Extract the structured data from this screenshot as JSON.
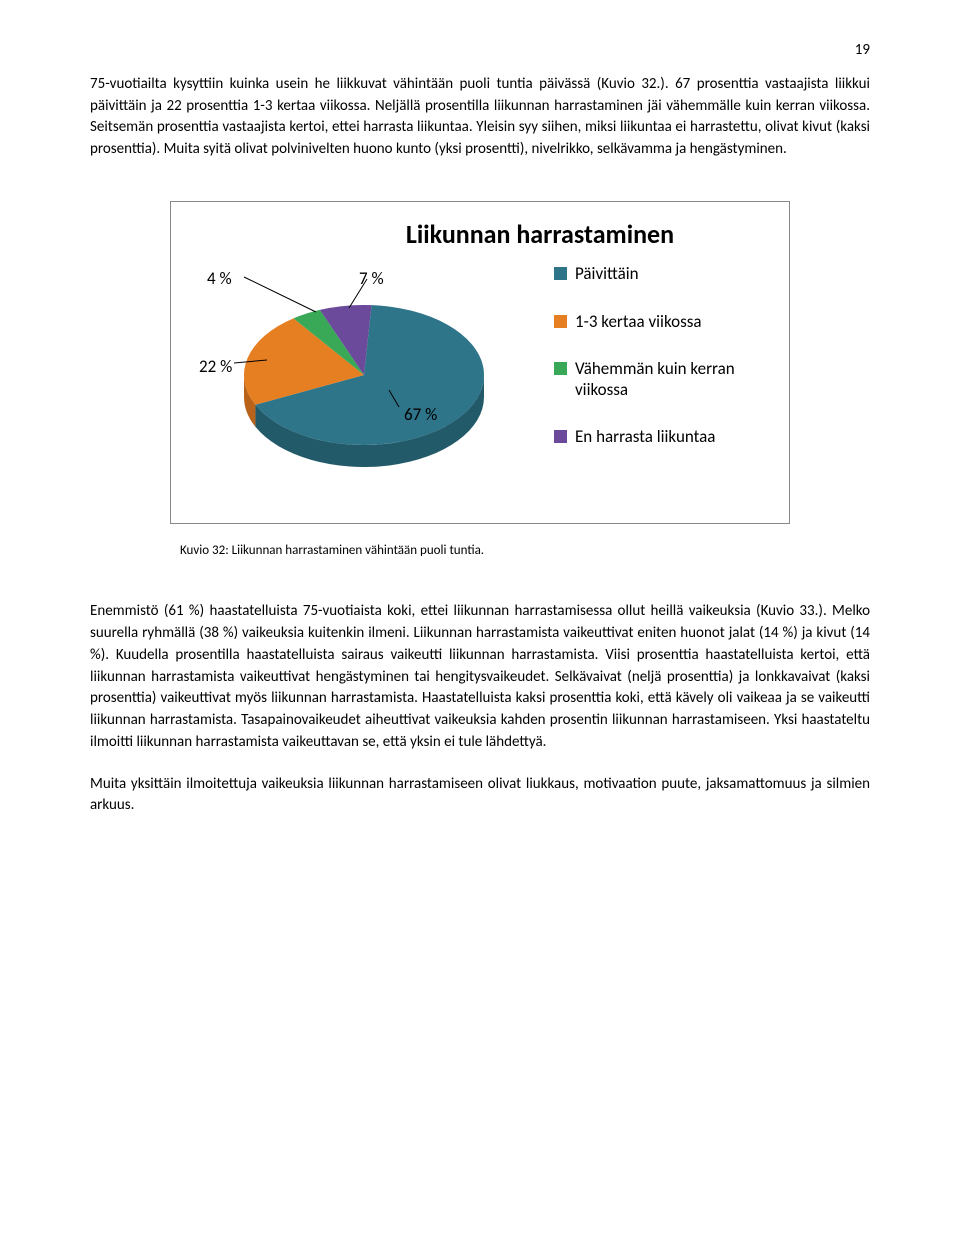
{
  "page_number": "19",
  "paragraph1": "75-vuotiailta kysyttiin kuinka usein he liikkuvat vähintään puoli tuntia päivässä (Kuvio 32.). 67 prosenttia vastaajista liikkui päivittäin ja 22 prosenttia 1-3 kertaa viikossa. Neljällä prosentilla liikunnan harrastaminen jäi vähemmälle kuin kerran viikossa. Seitsemän prosenttia vastaajista kertoi, ettei harrasta liikuntaa. Yleisin syy siihen, miksi liikuntaa ei harrastettu, olivat kivut (kaksi prosenttia). Muita syitä olivat polvinivelten huono kunto (yksi prosentti), nivelrikko, selkävamma ja hengästyminen.",
  "chart": {
    "type": "pie",
    "title": "Liikunnan harrastaminen",
    "slices": [
      {
        "key": "daily",
        "label": "Päivittäin",
        "value": 67,
        "display": "67 %",
        "color": "#2e7589",
        "darker": "#235a69"
      },
      {
        "key": "weekly",
        "label": "1-3 kertaa viikossa",
        "value": 22,
        "display": "22 %",
        "color": "#e67e22",
        "darker": "#b8621a"
      },
      {
        "key": "less",
        "label": "Vähemmän kuin kerran viikossa",
        "value": 4,
        "display": "4 %",
        "color": "#3aa957",
        "darker": "#2d8243"
      },
      {
        "key": "none",
        "label": "En harrasta liikuntaa",
        "value": 7,
        "display": "7 %",
        "color": "#6b4a9c",
        "darker": "#533a7a"
      }
    ],
    "label_fontsize": 17,
    "legend_fontsize": 17,
    "title_fontsize": 26,
    "background_color": "#ffffff"
  },
  "caption": "Kuvio 32: Liikunnan harrastaminen vähintään puoli tuntia.",
  "paragraph2": "Enemmistö (61 %) haastatelluista 75-vuotiaista koki, ettei liikunnan harrastamisessa ollut heillä vaikeuksia (Kuvio 33.). Melko suurella ryhmällä (38 %) vaikeuksia kuitenkin ilmeni. Liikunnan harrastamista vaikeuttivat eniten huonot jalat (14 %) ja kivut (14 %). Kuudella prosentilla haastatelluista sairaus vaikeutti liikunnan harrastamista. Viisi prosenttia haastatelluista kertoi, että liikunnan harrastamista vaikeuttivat hengästyminen tai hengitysvaikeudet.  Selkävaivat (neljä prosenttia) ja lonkkavaivat (kaksi prosenttia) vaikeuttivat myös liikunnan harrastamista. Haastatelluista kaksi prosenttia koki, että kävely oli vaikeaa ja se vaikeutti liikunnan harrastamista. Tasapainovaikeudet aiheuttivat vaikeuksia kahden prosentin liikunnan harrastamiseen. Yksi haastateltu ilmoitti liikunnan harrastamista vaikeuttavan se, että yksin ei tule lähdettyä.",
  "paragraph3": "Muita yksittäin ilmoitettuja vaikeuksia liikunnan harrastamiseen olivat liukkaus, motivaation puute, jaksamattomuus ja silmien arkuus."
}
